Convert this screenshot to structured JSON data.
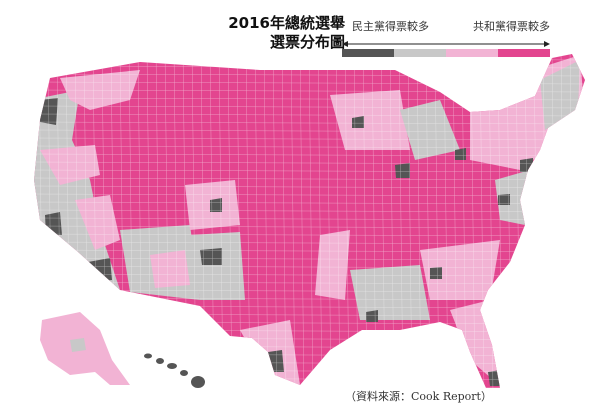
{
  "title": {
    "line1": "2016年總統選舉",
    "line2": "選票分布圖"
  },
  "legend": {
    "left_label": "民主黨得票較多",
    "right_label": "共和黨得票較多",
    "categories": [
      {
        "name": "dem-strong",
        "color": "#555555"
      },
      {
        "name": "dem-lean",
        "color": "#c8c8c8"
      },
      {
        "name": "rep-lean",
        "color": "#f2b3d4"
      },
      {
        "name": "rep-strong",
        "color": "#e3458f"
      }
    ]
  },
  "colors": {
    "rep_strong": "#e3458f",
    "rep_lean": "#f2b3d4",
    "dem_lean": "#c8c8c8",
    "dem_strong": "#555555",
    "border": "#ffffff"
  },
  "source": "（資料來源：Cook Report）"
}
